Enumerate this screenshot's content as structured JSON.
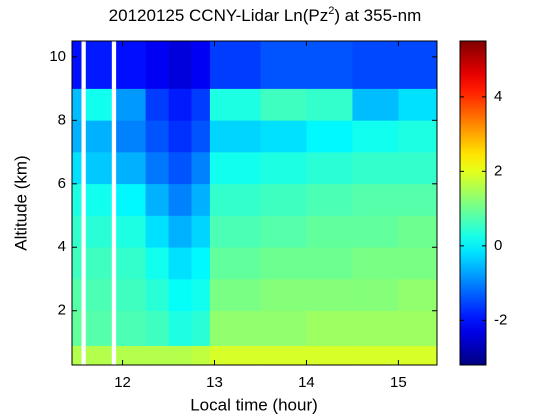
{
  "chart_data": {
    "type": "heatmap",
    "title": "20120125 CCNY-Lidar Ln(Pz",
    "title_superscript": "2",
    "title_suffix": ") at 355-nm",
    "x_label": "Local time (hour)",
    "y_label": "Altitude (km)",
    "colormap": "jet",
    "x_edges": [
      11.45,
      11.55,
      11.6,
      11.88,
      11.93,
      12.25,
      12.5,
      12.75,
      12.95,
      13.5,
      14,
      14.5,
      15,
      15.42
    ],
    "y_edges": [
      0.29,
      0.9,
      2,
      3,
      4,
      5,
      6,
      7,
      8,
      9,
      10.5
    ],
    "z": [
      [
        1.6,
        null,
        1.6,
        null,
        1.6,
        1.6,
        1.6,
        1.7,
        1.9,
        1.9,
        1.9,
        1.9,
        1.9
      ],
      [
        0.9,
        null,
        0.8,
        null,
        0.7,
        0.6,
        0.3,
        0.4,
        1.3,
        1.3,
        1.4,
        1.4,
        1.4
      ],
      [
        0.8,
        null,
        0.7,
        null,
        0.6,
        0.4,
        0.1,
        0.2,
        1.1,
        1.2,
        1.2,
        1.2,
        1.3
      ],
      [
        0.6,
        null,
        0.6,
        null,
        0.5,
        0.2,
        -0.2,
        0,
        0.9,
        1.0,
        1.0,
        1.1,
        1.1
      ],
      [
        0.5,
        null,
        0.4,
        null,
        0.3,
        -0.2,
        -0.6,
        -0.3,
        0.7,
        0.8,
        0.9,
        0.9,
        1.0
      ],
      [
        0.3,
        null,
        0.2,
        null,
        0,
        -0.6,
        -1.0,
        -0.6,
        0.5,
        0.6,
        0.7,
        0.8,
        0.8
      ],
      [
        -0.2,
        null,
        -0.4,
        null,
        -0.6,
        -1.1,
        -1.4,
        -1.0,
        0.2,
        0.3,
        0.4,
        0.5,
        0.5
      ],
      [
        -0.6,
        null,
        -0.6,
        null,
        -1.0,
        -1.4,
        -1.7,
        -1.4,
        -0.3,
        -0.2,
        0,
        0.2,
        0.3
      ],
      [
        -0.5,
        null,
        0.2,
        null,
        -0.8,
        -1.6,
        -1.9,
        -1.6,
        0.3,
        0.6,
        0.5,
        -0.5,
        -0.2
      ],
      [
        -2,
        null,
        -1.9,
        null,
        -2,
        -2.2,
        -2.4,
        -2.2,
        -1.6,
        -1.4,
        -1.4,
        -1.5,
        -1.5
      ]
    ],
    "xlim": [
      11.45,
      15.42
    ],
    "xticks": [
      12,
      13,
      14,
      15
    ],
    "ylim": [
      0.29,
      10.5
    ],
    "yticks": [
      2,
      4,
      6,
      8,
      10
    ],
    "clim": [
      -3.2,
      5.5
    ],
    "cticks": [
      -2,
      0,
      2,
      4
    ]
  }
}
